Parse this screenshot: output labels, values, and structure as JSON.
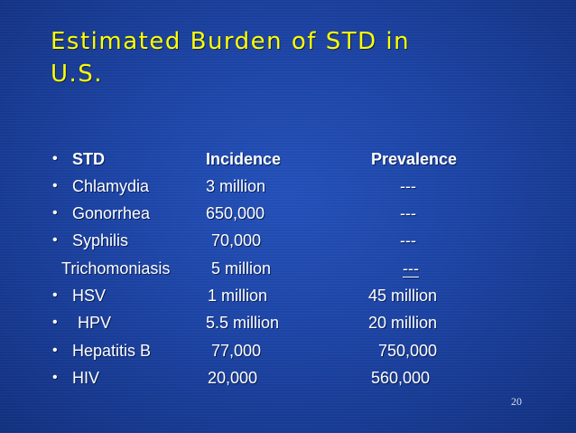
{
  "slide": {
    "title_lines": [
      "Estimated Burden of STD in",
      "U.S."
    ],
    "bullet_glyph": "•",
    "header": {
      "std": "STD",
      "incidence": "Incidence",
      "prevalence": "Prevalence"
    },
    "rows": [
      {
        "std": "Chlamydia",
        "incidence": "3 million",
        "prevalence": "---",
        "bullet": true
      },
      {
        "std": "Gonorrhea",
        "incidence": "650,000",
        "prevalence": "---",
        "bullet": true
      },
      {
        "std": "Syphilis",
        "incidence": "70,000",
        "prevalence": "---",
        "bullet": true
      },
      {
        "std": "Trichomoniasis",
        "incidence": "5 million",
        "prevalence": "---",
        "bullet": false
      },
      {
        "std": "HSV",
        "incidence": "1 million",
        "prevalence": "45 million",
        "bullet": true
      },
      {
        "std": "HPV",
        "incidence": "5.5 million",
        "prevalence": "20 million",
        "bullet": true
      },
      {
        "std": "Hepatitis B",
        "incidence": "77,000",
        "prevalence": "750,000",
        "bullet": true
      },
      {
        "std": "HIV",
        "incidence": "20,000",
        "prevalence": "560,000",
        "bullet": true
      }
    ],
    "page_number": "20",
    "colors": {
      "title": "#ffff00",
      "text": "#ffffff",
      "background": "#1c43a3"
    }
  }
}
